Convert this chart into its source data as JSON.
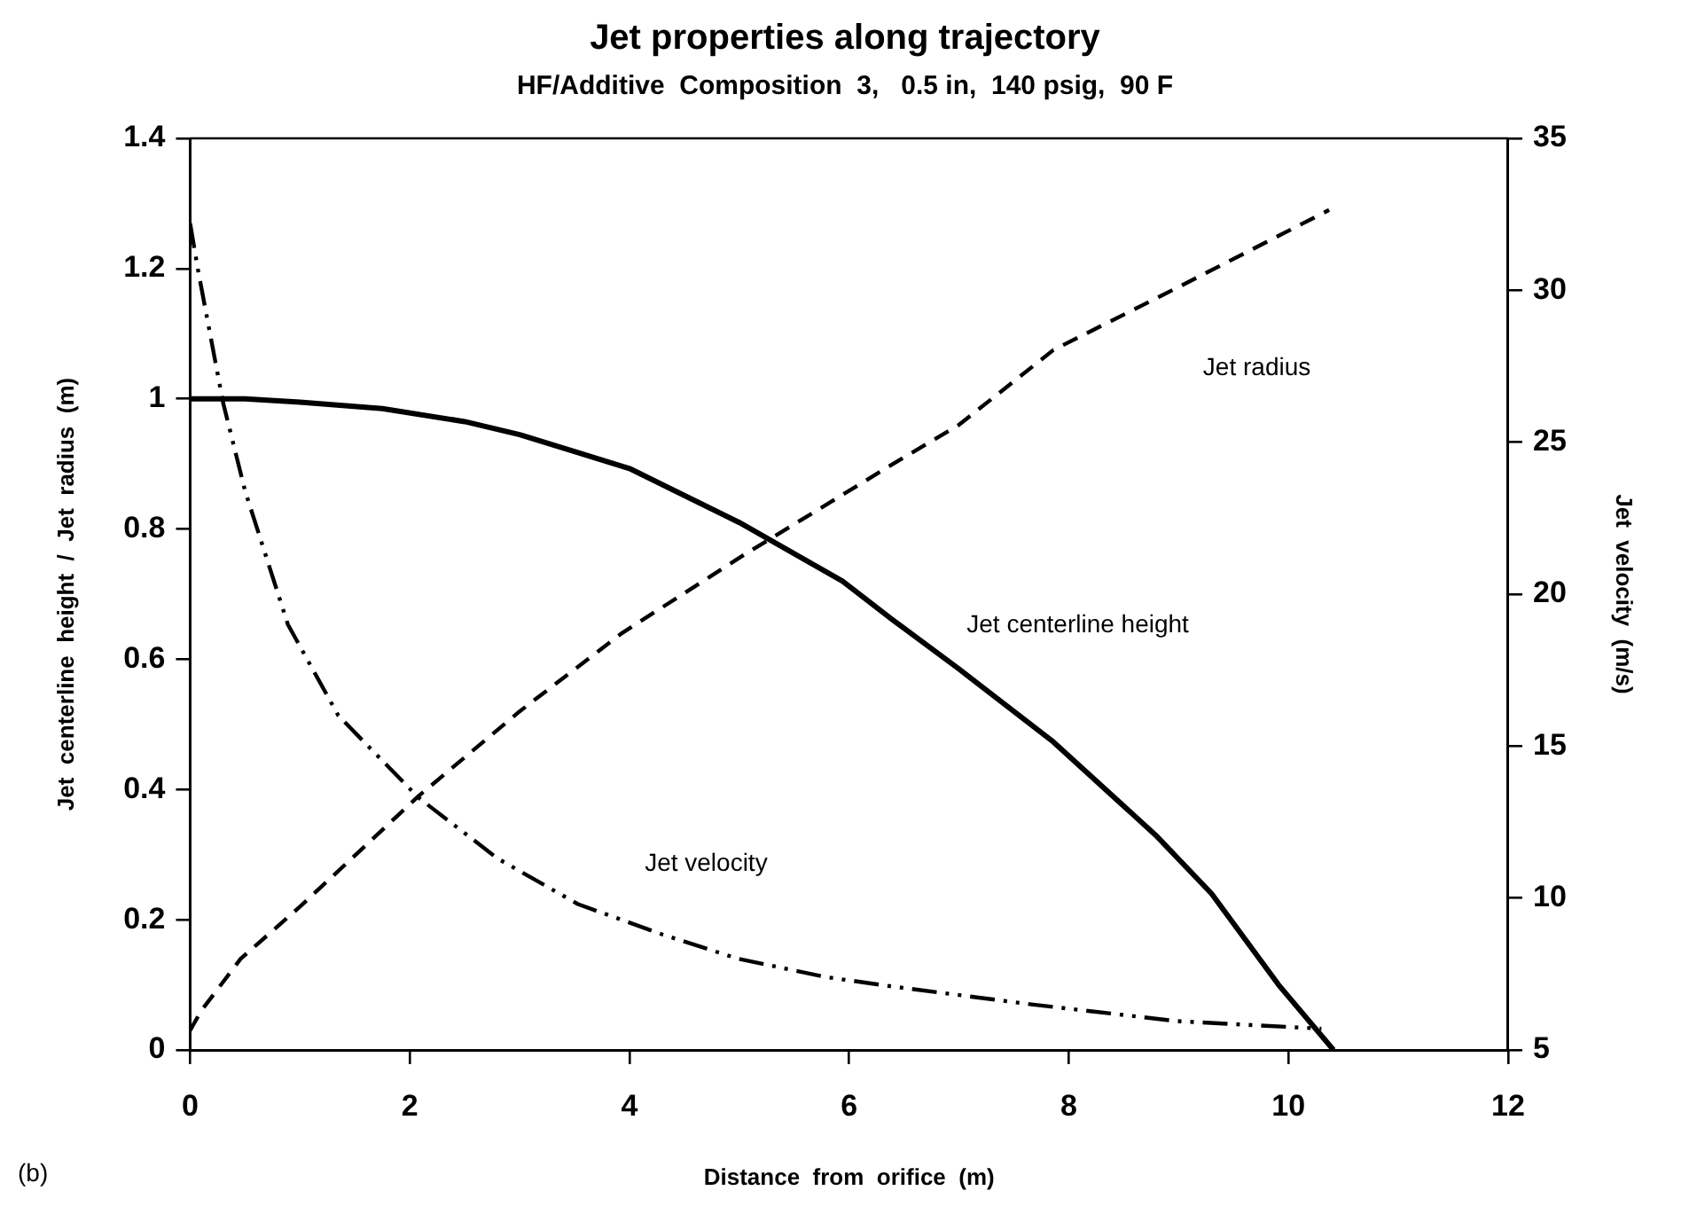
{
  "chart_data": {
    "type": "line",
    "title": "Jet properties along trajectory",
    "subtitle": "HF/Additive  Composition  3,   0.5 in,  140 psig,  90 F",
    "xlabel": "Distance  from  orifice  (m)",
    "ylabel": "Jet  centerline  height  /  Jet  radius  (m)",
    "y2label": "Jet  velocity  (m/s)",
    "annotations": [
      "(b)"
    ],
    "series": [
      {
        "name": "Jet centerline height",
        "color": "#000000",
        "line_style": "solid",
        "x": [
          0,
          0.5,
          1,
          1.75,
          2.5,
          3,
          4,
          5,
          5.94,
          6.4,
          7,
          7.86,
          8.79,
          9.3,
          9.91,
          10.41
        ],
        "values": [
          1.0,
          1.0,
          0.995,
          0.985,
          0.965,
          0.945,
          0.893,
          0.81,
          0.72,
          0.66,
          0.585,
          0.473,
          0.33,
          0.24,
          0.1,
          0.0
        ]
      },
      {
        "name": "Jet radius",
        "color": "#000000",
        "line_style": "dashed",
        "x": [
          0,
          0.1,
          0.46,
          1,
          2.08,
          3,
          3.93,
          5.04,
          6.4,
          7,
          7.86,
          8.98,
          10.37
        ],
        "values": [
          0.03,
          0.06,
          0.14,
          0.22,
          0.39,
          0.52,
          0.64,
          0.76,
          0.9,
          0.96,
          1.075,
          1.17,
          1.29
        ]
      },
      {
        "name": "Jet velocity",
        "color": "#000000",
        "line_style": "dotted",
        "axis": "y2",
        "x": [
          0,
          0.07,
          0.3,
          0.5,
          0.89,
          1.35,
          2.08,
          2.8,
          3.53,
          4.3,
          4.99,
          5.79,
          6.37,
          7.66,
          8.98,
          10.3
        ],
        "values": [
          32.2,
          30.7,
          26.3,
          23.4,
          19.0,
          16.0,
          13.3,
          11.3,
          9.8,
          8.8,
          8.0,
          7.4,
          7.1,
          6.5,
          5.95,
          5.7
        ]
      }
    ],
    "xlim": [
      0,
      12
    ],
    "xticks": [
      0,
      2,
      4,
      6,
      8,
      10,
      12
    ],
    "ylim": [
      0,
      1.4
    ],
    "yticks": [
      0,
      0.2,
      0.4,
      0.6,
      0.8,
      1,
      1.2,
      1.4
    ],
    "y2lim": [
      5,
      35
    ],
    "y2ticks": [
      5,
      10,
      15,
      20,
      25,
      30,
      35
    ],
    "legend": false,
    "marker": "none"
  }
}
